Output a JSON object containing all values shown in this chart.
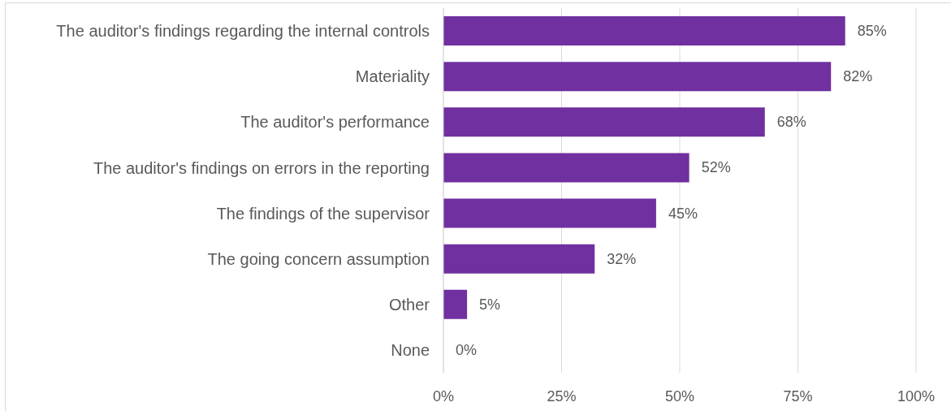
{
  "chart_data": {
    "type": "bar",
    "orientation": "horizontal",
    "categories": [
      "The auditor's findings regarding the internal controls",
      "Materiality",
      "The auditor's performance",
      "The auditor's findings on errors in the reporting",
      "The findings of the supervisor",
      "The going concern assumption",
      "Other",
      "None"
    ],
    "values": [
      85,
      82,
      68,
      52,
      45,
      32,
      5,
      0
    ],
    "color": "#7030a0",
    "xlim": [
      0,
      100
    ],
    "xticks": [
      {
        "value": 0,
        "label": "0%"
      },
      {
        "value": 25,
        "label": "25%"
      },
      {
        "value": 50,
        "label": "50%"
      },
      {
        "value": 75,
        "label": "75%"
      },
      {
        "value": 100,
        "label": "100%"
      }
    ],
    "grid": "x",
    "value_labels": [
      "85%",
      "82%",
      "68%",
      "52%",
      "45%",
      "32%",
      "5%",
      "0%"
    ]
  }
}
